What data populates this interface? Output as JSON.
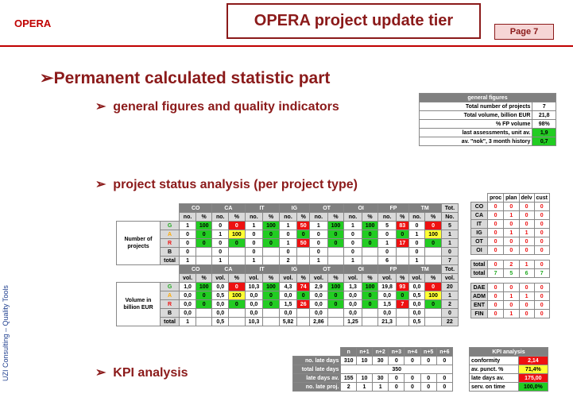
{
  "header": {
    "brand": "OPERA",
    "title": "OPERA project update tier",
    "page": "Page 7"
  },
  "heading": "Permanent calculated statistic part",
  "bullets": [
    "general figures and quality indicators",
    "project status analysis (per project type)",
    "KPI analysis"
  ],
  "side_note": "UZI Consulting – Quality Tools",
  "general_figures": {
    "title": "general figures",
    "rows": [
      [
        "Total number of projects",
        "7"
      ],
      [
        "Total volume, billion EUR",
        "21,8"
      ],
      [
        "% FP volume",
        "98%"
      ],
      [
        "last assessments, unit av.",
        "1,9"
      ],
      [
        "av. \"nok\", 3 month history",
        "0,7"
      ]
    ]
  },
  "status_table": {
    "types": [
      "CO",
      "CA",
      "IT",
      "IG",
      "OT",
      "OI",
      "FP",
      "TM"
    ],
    "total_header": "Tot.",
    "sections": [
      {
        "label": "Number of projects",
        "sub": [
          "no.",
          "%"
        ],
        "total_sub": "No.",
        "rows": [
          {
            "status": "G",
            "cells": [
              "1",
              "100",
              "0",
              "0",
              "1",
              "100",
              "1",
              "50",
              "1",
              "100",
              "1",
              "100",
              "5",
              "83",
              "0",
              "0"
            ],
            "total": "5"
          },
          {
            "status": "A",
            "cells": [
              "0",
              "0",
              "1",
              "100",
              "0",
              "0",
              "0",
              "0",
              "0",
              "0",
              "0",
              "0",
              "0",
              "0",
              "1",
              "100"
            ],
            "total": "1"
          },
          {
            "status": "R",
            "cells": [
              "0",
              "0",
              "0",
              "0",
              "0",
              "0",
              "1",
              "50",
              "0",
              "0",
              "0",
              "0",
              "1",
              "17",
              "0",
              "0"
            ],
            "total": "1"
          },
          {
            "status": "B",
            "cells": [
              "0",
              null,
              "0",
              null,
              "0",
              null,
              "0",
              null,
              "0",
              null,
              "0",
              null,
              "0",
              null,
              "0",
              null
            ],
            "total": "0"
          },
          {
            "status": "total",
            "cells": [
              "1",
              null,
              "1",
              null,
              "1",
              null,
              "2",
              null,
              "1",
              null,
              "1",
              null,
              "6",
              null,
              "1",
              null
            ],
            "total": "7"
          }
        ]
      },
      {
        "label": "Volume in billion EUR",
        "sub": [
          "vol.",
          "%"
        ],
        "total_sub": "vol.",
        "rows": [
          {
            "status": "G",
            "cells": [
              "1,0",
              "100",
              "0,0",
              "0",
              "10,3",
              "100",
              "4,3",
              "74",
              "2,9",
              "100",
              "1,3",
              "100",
              "19,8",
              "93",
              "0,0",
              "0"
            ],
            "total": "20"
          },
          {
            "status": "A",
            "cells": [
              "0,0",
              "0",
              "0,5",
              "100",
              "0,0",
              "0",
              "0,0",
              "0",
              "0,0",
              "0",
              "0,0",
              "0",
              "0,0",
              "0",
              "0,5",
              "100"
            ],
            "total": "1"
          },
          {
            "status": "R",
            "cells": [
              "0,0",
              "0",
              "0,0",
              "0",
              "0,0",
              "0",
              "1,5",
              "26",
              "0,0",
              "0",
              "0,0",
              "0",
              "1,5",
              "7",
              "0,0",
              "0"
            ],
            "total": "2"
          },
          {
            "status": "B",
            "cells": [
              "0,0",
              null,
              "0,0",
              null,
              "0,0",
              null,
              "0,0",
              null,
              "0,0",
              null,
              "0,0",
              null,
              "0,0",
              null,
              "0,0",
              null
            ],
            "total": "0"
          },
          {
            "status": "total",
            "cells": [
              "1",
              null,
              "0,5",
              null,
              "10,3",
              null,
              "5,82",
              null,
              "2,86",
              null,
              "1,25",
              null,
              "21,3",
              null,
              "0,5",
              null
            ],
            "total": "22"
          }
        ]
      }
    ]
  },
  "phase_table": {
    "header": [
      "proc",
      "plan",
      "delv",
      "cust"
    ],
    "groups": [
      [
        [
          "CO",
          "0",
          "0",
          "0",
          "0"
        ],
        [
          "CA",
          "0",
          "1",
          "0",
          "0"
        ],
        [
          "IT",
          "0",
          "0",
          "0",
          "0"
        ],
        [
          "IG",
          "0",
          "1",
          "1",
          "0"
        ],
        [
          "OT",
          "0",
          "0",
          "0",
          "0"
        ],
        [
          "OI",
          "0",
          "0",
          "0",
          "0"
        ]
      ],
      [
        [
          "total",
          "0",
          "2",
          "1",
          "0"
        ],
        [
          "total",
          "7",
          "5",
          "6",
          "7"
        ]
      ],
      [
        [
          "DAE",
          "0",
          "0",
          "0",
          "0"
        ],
        [
          "ADM",
          "0",
          "1",
          "1",
          "0"
        ],
        [
          "ENT",
          "0",
          "0",
          "0",
          "0"
        ],
        [
          "FIN",
          "0",
          "1",
          "0",
          "0"
        ]
      ]
    ]
  },
  "late_table": {
    "header": [
      "n",
      "n+1",
      "n+2",
      "n+3",
      "n+4",
      "n+5",
      "n+6"
    ],
    "rows": [
      {
        "label": "no. late days",
        "cells": [
          "310",
          "10",
          "30",
          "0",
          "0",
          "0",
          "0"
        ]
      },
      {
        "label": "total late days",
        "cells": [
          "350"
        ]
      },
      {
        "label": "late days av.",
        "cells": [
          "155",
          "10",
          "30",
          "0",
          "0",
          "0",
          "0"
        ]
      },
      {
        "label": "no. late proj.",
        "cells": [
          "2",
          "1",
          "1",
          "0",
          "0",
          "0",
          "0"
        ]
      }
    ]
  },
  "kpi_analysis": {
    "title": "KPI analysis",
    "rows": [
      [
        "conformity",
        "2,14"
      ],
      [
        "av. punct. %",
        "71,4%"
      ],
      [
        "late days av.",
        "175,00"
      ],
      [
        "serv. on time",
        "100,0%"
      ]
    ]
  }
}
